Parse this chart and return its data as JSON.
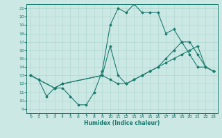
{
  "xlabel": "Humidex (Indice chaleur)",
  "bg_color": "#cce8e4",
  "line_color": "#1a7a6e",
  "grid_color": "#b0d8d0",
  "xlim": [
    -0.5,
    23.5
  ],
  "ylim": [
    8.5,
    21.5
  ],
  "xticks": [
    0,
    1,
    2,
    3,
    4,
    5,
    6,
    7,
    8,
    9,
    10,
    11,
    12,
    13,
    14,
    15,
    16,
    17,
    18,
    19,
    20,
    21,
    22,
    23
  ],
  "yticks": [
    9,
    10,
    11,
    12,
    13,
    14,
    15,
    16,
    17,
    18,
    19,
    20,
    21
  ],
  "line1_x": [
    0,
    1,
    2,
    3,
    4,
    5,
    6,
    7,
    8,
    9,
    10,
    11,
    12,
    13,
    14,
    15,
    16,
    17,
    18,
    19,
    20,
    21,
    22,
    23
  ],
  "line1_y": [
    13,
    12.5,
    10.5,
    11.5,
    11.5,
    10.5,
    9.5,
    9.5,
    11,
    13.5,
    19,
    21,
    20.5,
    21.5,
    20.5,
    20.5,
    20.5,
    18,
    18.5,
    17,
    15.5,
    14,
    14,
    13.5
  ],
  "line2_x": [
    0,
    3,
    4,
    9,
    10,
    11,
    12,
    13,
    14,
    15,
    16,
    17,
    18,
    19,
    20,
    21,
    22,
    23
  ],
  "line2_y": [
    13,
    11.5,
    12,
    13,
    16.5,
    13,
    12,
    12.5,
    13,
    13.5,
    14,
    15,
    16,
    17,
    17,
    15.5,
    14,
    13.5
  ],
  "line3_x": [
    0,
    3,
    4,
    9,
    10,
    11,
    12,
    13,
    14,
    15,
    16,
    17,
    18,
    19,
    20,
    21,
    22,
    23
  ],
  "line3_y": [
    13,
    11.5,
    12,
    13,
    12.5,
    12,
    12,
    12.5,
    13,
    13.5,
    14,
    14.5,
    15,
    15.5,
    16,
    16.5,
    14,
    13.5
  ]
}
